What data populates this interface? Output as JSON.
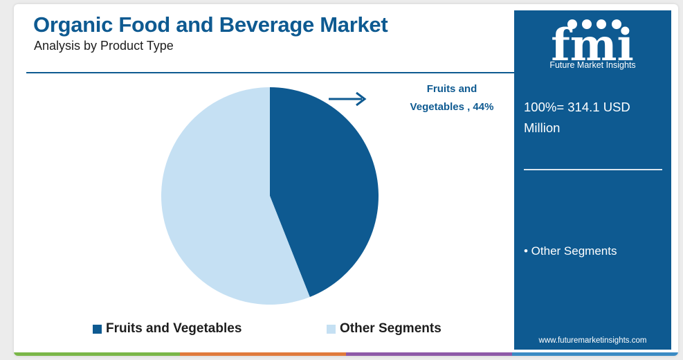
{
  "header": {
    "title": "Organic Food and Beverage Market",
    "subtitle": "Analysis by Product Type"
  },
  "chart_data": {
    "type": "pie",
    "categories": [
      "Fruits and Vegetables",
      "Other Segments"
    ],
    "values": [
      44,
      56
    ],
    "colors": [
      "#0e5a91",
      "#c5e0f3"
    ],
    "annotations": [
      {
        "label": "Fruits and Vegetables , 44%",
        "target": "Fruits and Vegetables"
      }
    ],
    "legend_placement": "bottom"
  },
  "callout": {
    "line1": "Fruits and",
    "line2": "Vegetables , 44%"
  },
  "legend": [
    {
      "label": "Fruits and Vegetables",
      "color": "#0e5a91"
    },
    {
      "label": "Other Segments",
      "color": "#c5e0f3"
    }
  ],
  "sidebar": {
    "logo_text": "fmi",
    "logo_subtitle": "Future Market Insights",
    "total_line1": "100%= 314.1 USD",
    "total_line2": "Million",
    "bullet": "• Other Segments",
    "website": "www.futuremarketinsights.com",
    "bg_color": "#0e5a91"
  },
  "bottom_bar_colors": [
    "#7ab648",
    "#e07a3c",
    "#8e5aa8",
    "#3b8bc4"
  ]
}
